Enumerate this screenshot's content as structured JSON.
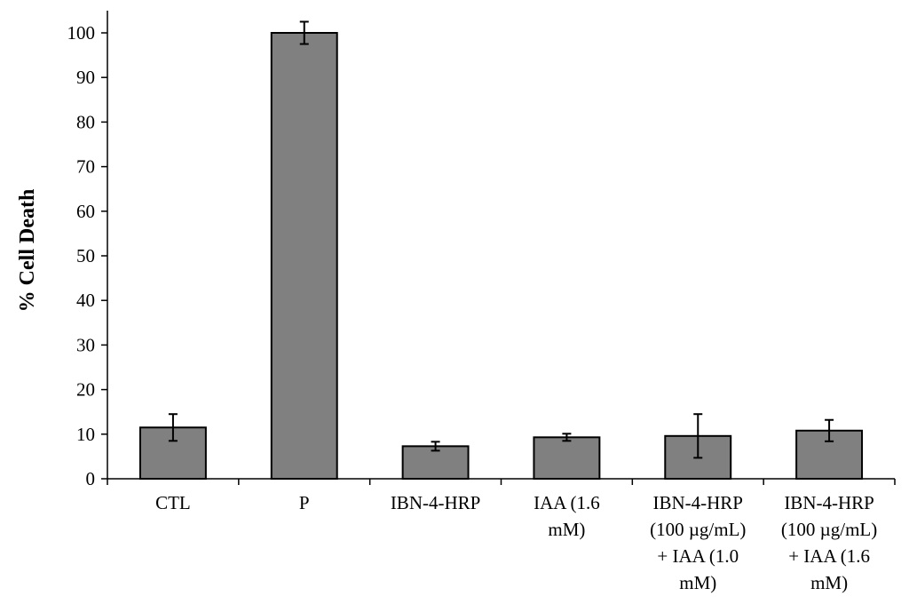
{
  "chart_data": {
    "type": "bar",
    "title": "",
    "xlabel": "",
    "ylabel": "% Cell Death",
    "ylim": [
      0,
      100
    ],
    "yticks": [
      0,
      10,
      20,
      30,
      40,
      50,
      60,
      70,
      80,
      90,
      100
    ],
    "grid": false,
    "categories": [
      "CTL",
      "P",
      "IBN-4-HRP",
      "IAA (1.6 mM)",
      "IBN-4-HRP (100 µg/mL) + IAA (1.0 mM)",
      "IBN-4-HRP (100 µg/mL) + IAA (1.6 mM)"
    ],
    "category_label_lines": [
      [
        "CTL"
      ],
      [
        "P"
      ],
      [
        "IBN-4-HRP"
      ],
      [
        "IAA (1.6",
        "mM)"
      ],
      [
        "IBN-4-HRP",
        "(100 µg/mL)",
        "+ IAA (1.0",
        "mM)"
      ],
      [
        "IBN-4-HRP",
        "(100 µg/mL)",
        "+ IAA (1.6",
        "mM)"
      ]
    ],
    "values": [
      11.5,
      100,
      7.3,
      9.3,
      9.6,
      10.8
    ],
    "errors": [
      3.0,
      2.5,
      1.0,
      0.8,
      4.9,
      2.4
    ],
    "colors": {
      "bar": "#808080",
      "outline": "#000000"
    }
  }
}
